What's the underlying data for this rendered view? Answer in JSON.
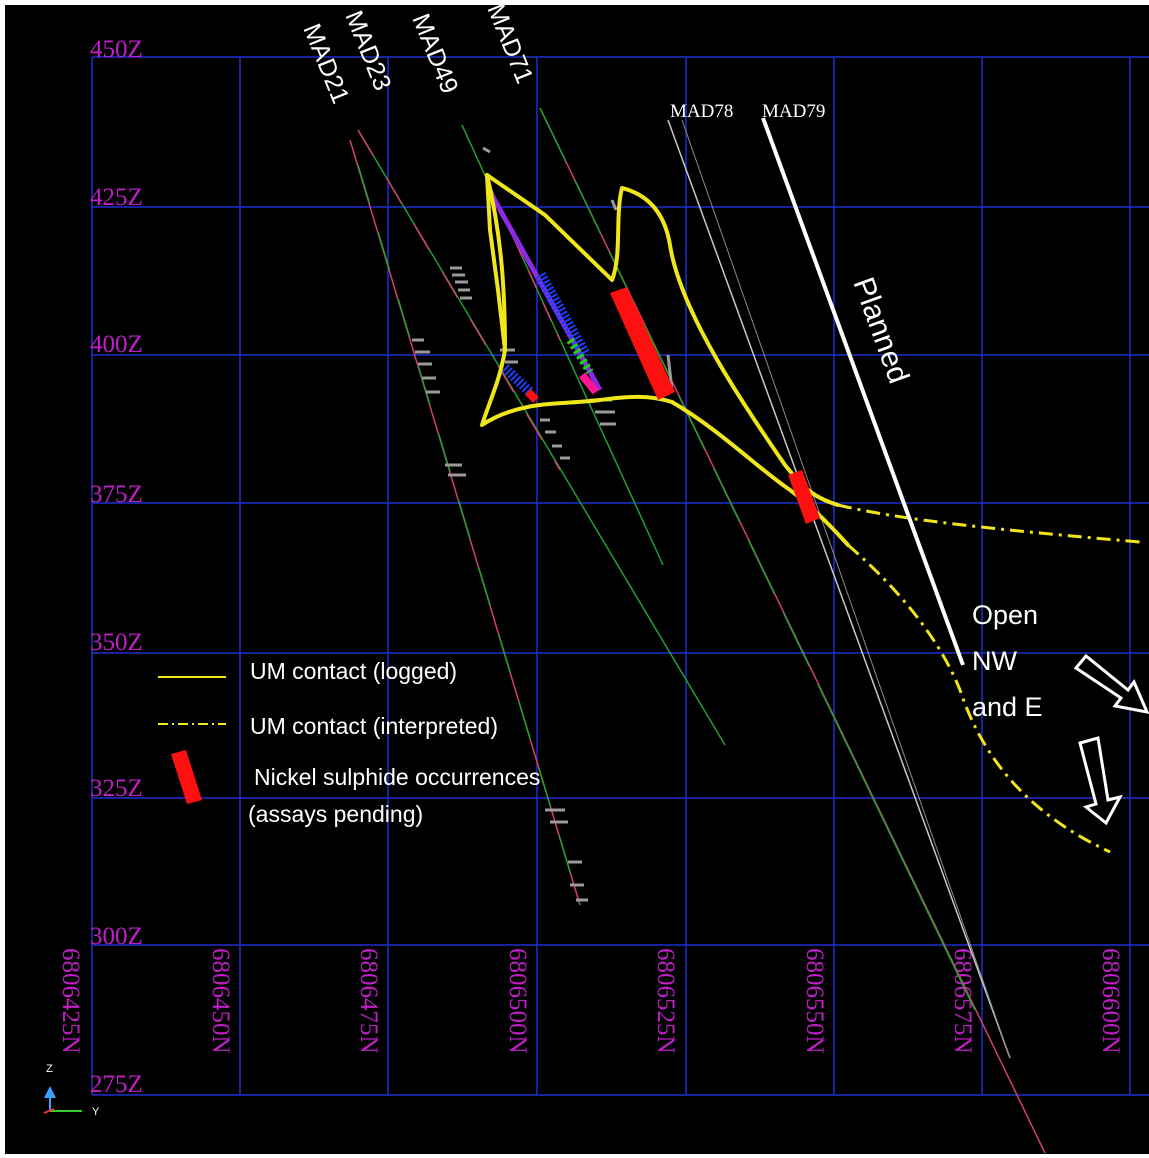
{
  "elevation_labels": [
    "450Z",
    "425Z",
    "400Z",
    "375Z",
    "350Z",
    "325Z",
    "300Z",
    "275Z"
  ],
  "northing_labels": [
    "6806425N",
    "6806450N",
    "6806475N",
    "6806500N",
    "6806525N",
    "6806550N",
    "6806575N",
    "6806600N"
  ],
  "drillholes": [
    {
      "name": "MAD23"
    },
    {
      "name": "MAD21"
    },
    {
      "name": "MAD49"
    },
    {
      "name": "MAD71"
    },
    {
      "name": "MAD78"
    },
    {
      "name": "MAD79"
    }
  ],
  "planned_label": "Planned",
  "open_note": [
    "Open",
    "NW",
    "and E"
  ],
  "legend": {
    "logged": "UM contact (logged)",
    "interpreted": "UM contact (interpreted)",
    "nickel_line1": "Nickel sulphide occurrences",
    "nickel_line2": "(assays pending)"
  },
  "axis_triad": {
    "z": "Z",
    "y": "Y"
  },
  "colors": {
    "background": "#000000",
    "grid": "#1f2fd0",
    "axis_label": "#c21fc9",
    "um_contact": "#f0e619",
    "nickel": "#ff1010",
    "trace_green": "#1fa02f",
    "trace_red": "#d2406a",
    "planned": "#ffffff"
  }
}
